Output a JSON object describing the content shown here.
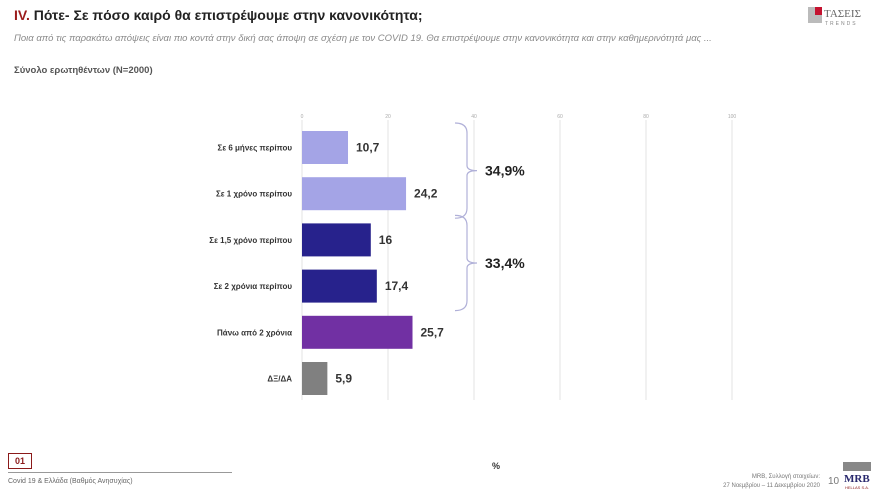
{
  "header": {
    "title_num": "IV.",
    "title": " Πότε- Σε πόσο καιρό θα επιστρέψουμε στην κανονικότητα;",
    "subtitle": "Ποια από τις παρακάτω απόψεις είναι πιο κοντά στην δική σας άποψη σε σχέση με τον COVID 19. Θα επιστρέψουμε στην κανονικότητα και στην καθημερινότητά μας ...",
    "base": "Σύνολο ερωτηθέντων (N=2000)",
    "logo": "ΤΑΣΕΙΣ TRENDS"
  },
  "chart_data": {
    "type": "bar",
    "orientation": "horizontal",
    "categories": [
      "Σε 6 μήνες περίπου",
      "Σε 1 χρόνο περίπου",
      "Σε 1,5 χρόνο περίπου",
      "Σε 2 χρόνια περίπου",
      "Πάνω από 2 χρόνια",
      "ΔΞ/ΔΑ"
    ],
    "values": [
      10.7,
      24.2,
      16,
      17.4,
      25.7,
      5.9
    ],
    "value_labels": [
      "10,7",
      "24,2",
      "16",
      "17,4",
      "25,7",
      "5,9"
    ],
    "colors": [
      "#a4a4e6",
      "#a4a4e6",
      "#27228c",
      "#27228c",
      "#7130a3",
      "#808080"
    ],
    "xlim": [
      0,
      100
    ],
    "xticks": [
      "0",
      "20",
      "40",
      "60",
      "80",
      "100"
    ],
    "grid": true,
    "xlabel": "%",
    "groups": [
      {
        "label": "34,9%",
        "from": 0,
        "to": 1
      },
      {
        "label": "33,4%",
        "from": 2,
        "to": 3
      }
    ]
  },
  "footer": {
    "page_box": "01",
    "topic": "Covid 19 & Ελλάδα (Βαθμός Ανησυχίας)",
    "source_line1": "MRB, Συλλογή στοιχείων:",
    "source_line2": "27 Νοεμβρίου – 11 Δεκεμβρίου 2020",
    "page": "10",
    "logo": "MRB HELLAS S.A."
  }
}
